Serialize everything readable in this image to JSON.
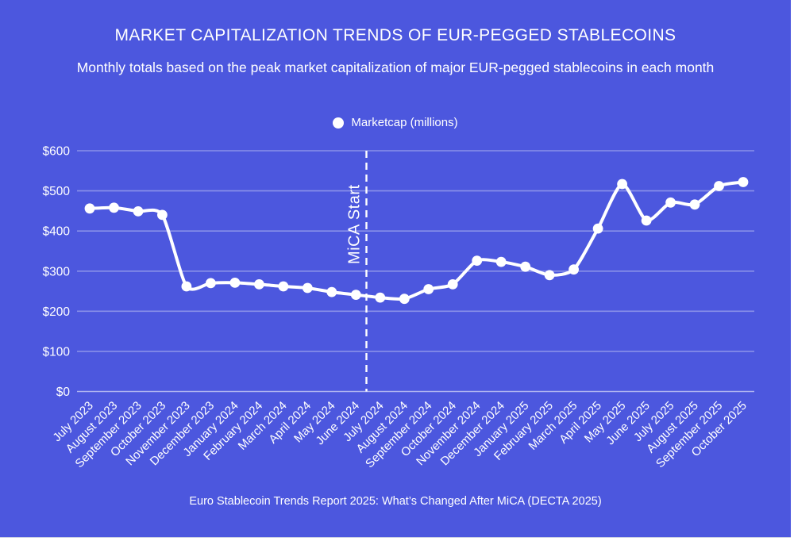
{
  "header": {
    "title": "MARKET CAPITALIZATION TRENDS OF EUR-PEGGED STABLECOINS",
    "subtitle": "Monthly totals based on the peak market capitalization of major EUR-pegged stablecoins in each month"
  },
  "legend": {
    "label": "Marketcap (millions)",
    "marker": "white-circle"
  },
  "footer": {
    "caption": "Euro Stablecoin Trends Report 2025: What’s Changed After MiCA (DECTA 2025)"
  },
  "colors": {
    "background": "#4c57de",
    "line": "#ffffff",
    "points": "#ffffff",
    "grid": "rgba(255,255,255,0.35)",
    "grid_zero": "rgba(255,255,255,0.55)",
    "text": "#ffffff",
    "annotation_line": "#ffffff"
  },
  "chart_data": {
    "type": "line",
    "title": "MARKET CAPITALIZATION TRENDS OF EUR-PEGGED STABLECOINS",
    "subtitle": "Monthly totals based on the peak market capitalization of major EUR-pegged stablecoins in each month",
    "xlabel": "",
    "ylabel": "",
    "ylim": [
      0,
      600
    ],
    "y_ticks": [
      0,
      100,
      200,
      300,
      400,
      500,
      600
    ],
    "y_tick_prefix": "$",
    "grid": true,
    "legend_position": "top",
    "categories": [
      "July 2023",
      "August 2023",
      "September 2023",
      "October 2023",
      "November 2023",
      "December 2023",
      "January 2024",
      "February 2024",
      "March 2024",
      "April 2024",
      "May 2024",
      "June 2024",
      "July 2024",
      "August 2024",
      "September 2024",
      "October 2024",
      "November 2024",
      "December 2024",
      "January 2025",
      "February 2025",
      "March 2025",
      "April 2025",
      "May 2025",
      "June 2025",
      "July 2025",
      "August 2025",
      "September 2025",
      "October 2025"
    ],
    "series": [
      {
        "name": "Marketcap (millions)",
        "values": [
          456,
          458,
          449,
          440,
          262,
          270,
          271,
          267,
          262,
          258,
          248,
          241,
          234,
          231,
          255,
          267,
          326,
          323,
          311,
          290,
          304,
          406,
          517,
          426,
          471,
          466,
          512,
          522
        ]
      }
    ],
    "annotation": {
      "label": "MiCA Start",
      "type": "vertical-dashed-line",
      "between": [
        "June 2024",
        "July 2024"
      ]
    }
  }
}
